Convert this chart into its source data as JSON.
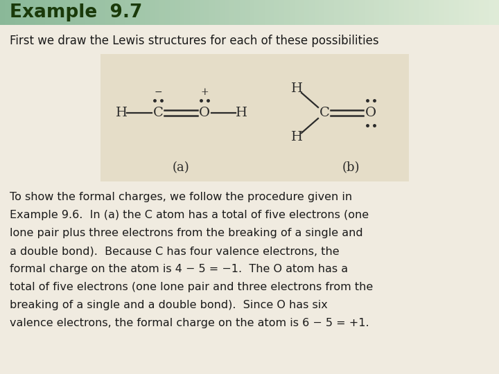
{
  "title": "Example  9.7",
  "title_color": "#1a3a0a",
  "title_bg_left": "#8ab898",
  "title_bg_right": "#c8d8b8",
  "bg_color": "#f0ebe0",
  "box_bg": "#e8e0cc",
  "subtitle": "First we draw the Lewis structures for each of these possibilities",
  "body_text": [
    "To show the formal charges, we follow the procedure given in",
    "Example 9.6.  In (a) the C atom has a total of five electrons (one",
    "lone pair plus three electrons from the breaking of a single and",
    "a double bond).  Because C has four valence electrons, the",
    "formal charge on the atom is 4 − 5 = −1.  The O atom has a",
    "total of five electrons (one lone pair and three electrons from the",
    "breaking of a single and a double bond).  Since O has six",
    "valence electrons, the formal charge on the atom is 6 − 5 = +1."
  ],
  "label_a": "(a)",
  "label_b": "(b)",
  "font_size_title": 19,
  "font_size_subtitle": 12,
  "font_size_body": 11.5,
  "font_size_chem": 14,
  "title_bar_height": 36
}
